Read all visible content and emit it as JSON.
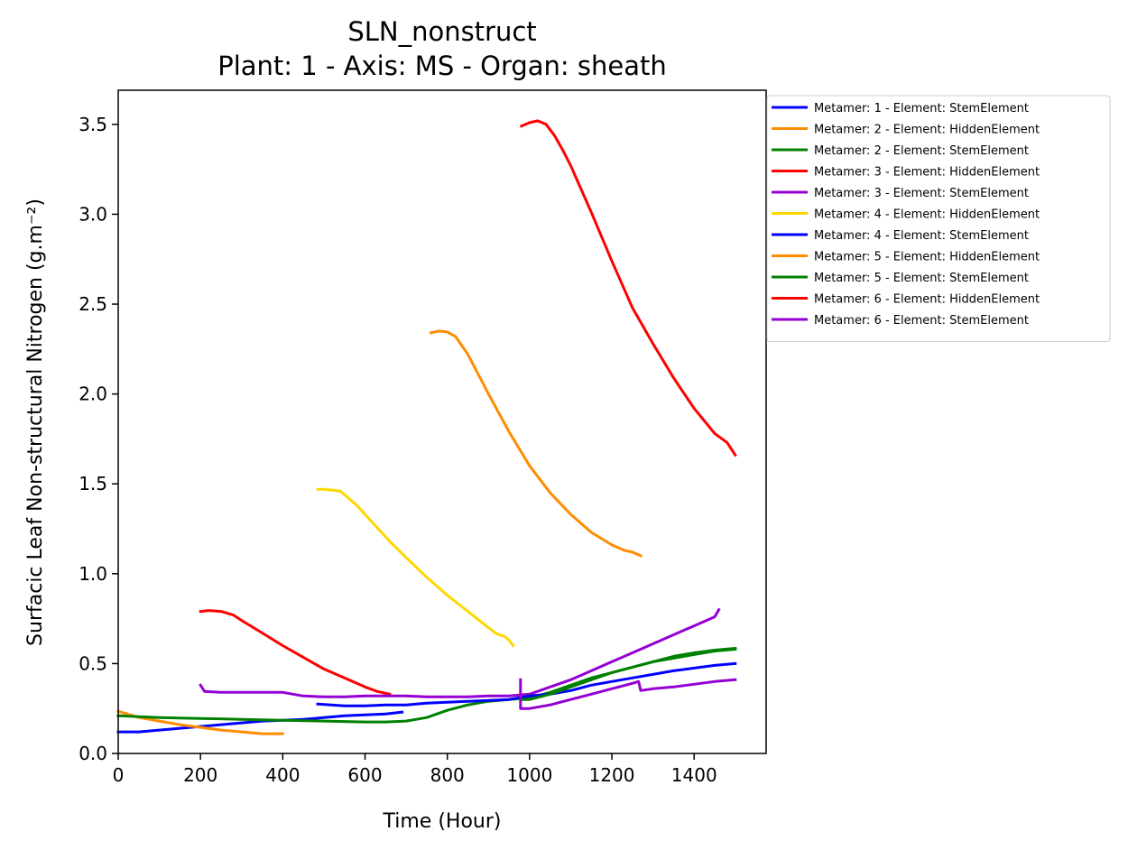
{
  "chart_data": {
    "type": "line",
    "title": "SLN_nonstruct",
    "subtitle": "Plant: 1 - Axis: MS - Organ: sheath",
    "xlabel": "Time (Hour)",
    "ylabel": "Surfacic Leaf Non-structural Nitrogen (g.m⁻²)",
    "xlim": [
      0,
      1575
    ],
    "ylim": [
      0,
      3.69
    ],
    "xticks": [
      0,
      200,
      400,
      600,
      800,
      1000,
      1200,
      1400
    ],
    "yticks": [
      0.0,
      0.5,
      1.0,
      1.5,
      2.0,
      2.5,
      3.0,
      3.5
    ],
    "xtick_labels": [
      "0",
      "200",
      "400",
      "600",
      "800",
      "1000",
      "1200",
      "1400"
    ],
    "ytick_labels": [
      "0.0",
      "0.5",
      "1.0",
      "1.5",
      "2.0",
      "2.5",
      "3.0",
      "3.5"
    ],
    "grid": false,
    "legend_position": "outside-top-right",
    "series": [
      {
        "name": "Metamer: 1 - Element: StemElement",
        "color": "#0000ff",
        "x": [
          0,
          50,
          100,
          150,
          200,
          250,
          300,
          350,
          400,
          450,
          500,
          550,
          600,
          650,
          690
        ],
        "y": [
          0.12,
          0.12,
          0.13,
          0.14,
          0.15,
          0.16,
          0.17,
          0.18,
          0.185,
          0.19,
          0.2,
          0.21,
          0.215,
          0.22,
          0.23
        ]
      },
      {
        "name": "Metamer: 2 - Element: HiddenElement",
        "color": "#ff8c00",
        "x": [
          0,
          50,
          100,
          150,
          200,
          250,
          300,
          350,
          380,
          400
        ],
        "y": [
          0.235,
          0.2,
          0.18,
          0.16,
          0.145,
          0.13,
          0.12,
          0.11,
          0.11,
          0.11
        ]
      },
      {
        "name": "Metamer: 2 - Element: StemElement",
        "color": "#008000",
        "x": [
          0,
          100,
          200,
          300,
          400,
          500,
          600,
          650,
          700,
          750,
          800,
          850,
          900,
          950,
          1000,
          1050,
          1100,
          1150,
          1200,
          1250,
          1300,
          1350,
          1400,
          1450,
          1500
        ],
        "y": [
          0.21,
          0.2,
          0.195,
          0.19,
          0.185,
          0.18,
          0.175,
          0.175,
          0.18,
          0.2,
          0.24,
          0.27,
          0.29,
          0.3,
          0.31,
          0.34,
          0.38,
          0.42,
          0.45,
          0.48,
          0.51,
          0.53,
          0.55,
          0.57,
          0.58
        ]
      },
      {
        "name": "Metamer: 3 - Element: HiddenElement",
        "color": "#ff0000",
        "x": [
          200,
          220,
          250,
          280,
          300,
          350,
          400,
          450,
          500,
          550,
          600,
          630,
          660
        ],
        "y": [
          0.79,
          0.795,
          0.79,
          0.77,
          0.74,
          0.67,
          0.6,
          0.535,
          0.47,
          0.42,
          0.37,
          0.345,
          0.33
        ]
      },
      {
        "name": "Metamer: 3 - Element: StemElement",
        "color": "#9400d3",
        "x": [
          200,
          210,
          250,
          300,
          350,
          400,
          450,
          500,
          550,
          600,
          650,
          700,
          750,
          800,
          850,
          900,
          950,
          1000,
          1050,
          1100,
          1150,
          1200,
          1250,
          1300,
          1350,
          1400,
          1450,
          1460
        ],
        "y": [
          0.38,
          0.345,
          0.34,
          0.34,
          0.34,
          0.34,
          0.32,
          0.315,
          0.315,
          0.32,
          0.32,
          0.32,
          0.315,
          0.315,
          0.315,
          0.32,
          0.32,
          0.33,
          0.37,
          0.41,
          0.46,
          0.51,
          0.56,
          0.61,
          0.66,
          0.71,
          0.76,
          0.8
        ]
      },
      {
        "name": "Metamer: 4 - Element: HiddenElement",
        "color": "#ffd700",
        "x": [
          485,
          500,
          540,
          580,
          620,
          660,
          700,
          750,
          800,
          850,
          900,
          920,
          940,
          950,
          960
        ],
        "y": [
          1.47,
          1.47,
          1.46,
          1.38,
          1.28,
          1.18,
          1.09,
          0.98,
          0.88,
          0.79,
          0.7,
          0.665,
          0.65,
          0.63,
          0.6
        ]
      },
      {
        "name": "Metamer: 4 - Element: StemElement",
        "color": "#0000ff",
        "x": [
          485,
          550,
          600,
          650,
          700,
          750,
          800,
          850,
          900,
          950,
          1000,
          1050,
          1100,
          1150,
          1200,
          1250,
          1300,
          1350,
          1400,
          1450,
          1500
        ],
        "y": [
          0.275,
          0.265,
          0.265,
          0.27,
          0.27,
          0.28,
          0.285,
          0.29,
          0.295,
          0.3,
          0.32,
          0.33,
          0.35,
          0.38,
          0.4,
          0.42,
          0.44,
          0.46,
          0.475,
          0.49,
          0.5
        ]
      },
      {
        "name": "Metamer: 5 - Element: HiddenElement",
        "color": "#ff8c00",
        "x": [
          760,
          780,
          800,
          820,
          850,
          900,
          950,
          1000,
          1050,
          1100,
          1150,
          1200,
          1230,
          1250,
          1270
        ],
        "y": [
          2.34,
          2.35,
          2.345,
          2.32,
          2.22,
          2.0,
          1.79,
          1.6,
          1.45,
          1.33,
          1.23,
          1.16,
          1.13,
          1.12,
          1.1
        ]
      },
      {
        "name": "Metamer: 5 - Element: StemElement",
        "color": "#008000",
        "x": [
          980,
          1000,
          1050,
          1100,
          1150,
          1200,
          1250,
          1300,
          1350,
          1400,
          1450,
          1500
        ],
        "y": [
          0.3,
          0.3,
          0.33,
          0.37,
          0.41,
          0.45,
          0.48,
          0.51,
          0.54,
          0.56,
          0.575,
          0.585
        ]
      },
      {
        "name": "Metamer: 6 - Element: HiddenElement",
        "color": "#ff0000",
        "x": [
          980,
          1000,
          1020,
          1040,
          1060,
          1080,
          1100,
          1150,
          1200,
          1250,
          1300,
          1350,
          1400,
          1450,
          1480,
          1500
        ],
        "y": [
          3.49,
          3.51,
          3.52,
          3.5,
          3.44,
          3.36,
          3.27,
          3.01,
          2.74,
          2.48,
          2.28,
          2.09,
          1.92,
          1.78,
          1.73,
          1.66
        ]
      },
      {
        "name": "Metamer: 6 - Element: StemElement",
        "color": "#9400d3",
        "x": [
          978,
          978,
          1000,
          1050,
          1100,
          1150,
          1200,
          1250,
          1265,
          1270,
          1300,
          1350,
          1400,
          1450,
          1500
        ],
        "y": [
          0.41,
          0.25,
          0.25,
          0.27,
          0.3,
          0.33,
          0.36,
          0.39,
          0.4,
          0.35,
          0.36,
          0.37,
          0.385,
          0.4,
          0.41
        ]
      }
    ]
  }
}
